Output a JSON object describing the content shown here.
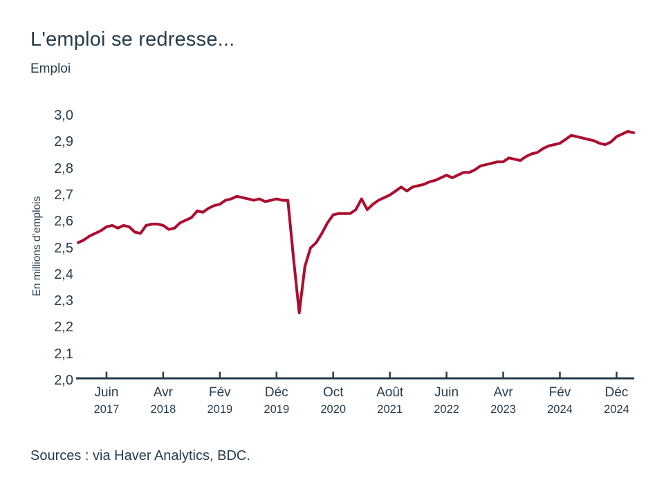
{
  "page": {
    "title": "L'emploi se redresse...",
    "subtitle": "Emploi",
    "source_note": "Sources : via Haver Analytics, BDC."
  },
  "colors": {
    "line": "#ab0e2f",
    "axis": "#263c4c",
    "text": "#263c4c",
    "background": "#ffffff"
  },
  "chart_data": {
    "type": "line",
    "title": "L'emploi se redresse...",
    "subtitle": "Emploi",
    "ylabel": "En millions d’emplois",
    "ylim": [
      2.0,
      3.0
    ],
    "grid": false,
    "legend": "none",
    "line_color": "#ab0e2f",
    "x_unit": "monthly, from Jan 2017 to Mar 2025",
    "y_ticks": [
      {
        "label": "3,0",
        "value": 3.0
      },
      {
        "label": "2,9",
        "value": 2.9
      },
      {
        "label": "2,8",
        "value": 2.8
      },
      {
        "label": "2,7",
        "value": 2.7
      },
      {
        "label": "2,6",
        "value": 2.6
      },
      {
        "label": "2,5",
        "value": 2.5
      },
      {
        "label": "2,4",
        "value": 2.4
      },
      {
        "label": "2,3",
        "value": 2.3
      },
      {
        "label": "2,2",
        "value": 2.2
      },
      {
        "label": "2,1",
        "value": 2.1
      },
      {
        "label": "2,0",
        "value": 2.0
      }
    ],
    "x_ticks": [
      {
        "month": "Juin",
        "year": "2017",
        "index": 5
      },
      {
        "month": "Avr",
        "year": "2018",
        "index": 15
      },
      {
        "month": "Fév",
        "year": "2019",
        "index": 25
      },
      {
        "month": "Déc",
        "year": "2019",
        "index": 35
      },
      {
        "month": "Oct",
        "year": "2020",
        "index": 45
      },
      {
        "month": "Août",
        "year": "2021",
        "index": 55
      },
      {
        "month": "Juin",
        "year": "2022",
        "index": 65
      },
      {
        "month": "Avr",
        "year": "2023",
        "index": 75
      },
      {
        "month": "Fév",
        "year": "2024",
        "index": 85
      },
      {
        "month": "Déc",
        "year": "2024",
        "index": 95
      }
    ],
    "series": [
      {
        "name": "Emploi",
        "values": [
          2.52,
          2.53,
          2.545,
          2.555,
          2.565,
          2.58,
          2.585,
          2.575,
          2.585,
          2.58,
          2.56,
          2.555,
          2.585,
          2.59,
          2.59,
          2.585,
          2.57,
          2.575,
          2.595,
          2.605,
          2.615,
          2.64,
          2.635,
          2.65,
          2.66,
          2.665,
          2.68,
          2.685,
          2.695,
          2.69,
          2.685,
          2.68,
          2.685,
          2.675,
          2.68,
          2.685,
          2.68,
          2.68,
          2.46,
          2.255,
          2.43,
          2.5,
          2.52,
          2.555,
          2.595,
          2.625,
          2.63,
          2.63,
          2.63,
          2.645,
          2.685,
          2.645,
          2.665,
          2.68,
          2.69,
          2.7,
          2.715,
          2.73,
          2.715,
          2.73,
          2.735,
          2.74,
          2.75,
          2.755,
          2.765,
          2.775,
          2.765,
          2.775,
          2.785,
          2.785,
          2.795,
          2.81,
          2.815,
          2.82,
          2.825,
          2.825,
          2.84,
          2.835,
          2.83,
          2.845,
          2.855,
          2.86,
          2.875,
          2.885,
          2.89,
          2.895,
          2.91,
          2.925,
          2.92,
          2.915,
          2.91,
          2.905,
          2.895,
          2.89,
          2.9,
          2.92,
          2.93,
          2.94,
          2.935
        ]
      }
    ]
  }
}
